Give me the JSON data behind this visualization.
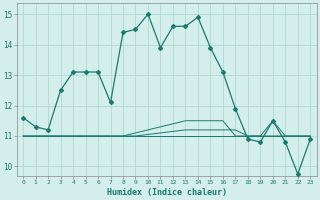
{
  "xlabel": "Humidex (Indice chaleur)",
  "ylabel": "",
  "background_color": "#d4eeec",
  "grid_color": "#aed8d5",
  "line_color": "#1a7a6e",
  "xlim": [
    -0.5,
    23.5
  ],
  "ylim": [
    9.7,
    15.35
  ],
  "yticks": [
    10,
    11,
    12,
    13,
    14,
    15
  ],
  "xticks": [
    0,
    1,
    2,
    3,
    4,
    5,
    6,
    7,
    8,
    9,
    10,
    11,
    12,
    13,
    14,
    15,
    16,
    17,
    18,
    19,
    20,
    21,
    22,
    23
  ],
  "series": [
    [
      11.6,
      11.3,
      11.2,
      12.5,
      13.1,
      13.1,
      13.1,
      12.1,
      14.4,
      14.5,
      15.0,
      13.9,
      14.6,
      14.6,
      14.9,
      13.9,
      13.1,
      11.9,
      10.9,
      10.8,
      11.5,
      10.8,
      9.75,
      10.9
    ],
    [
      11.0,
      11.0,
      11.0,
      11.0,
      11.0,
      11.0,
      11.0,
      11.0,
      11.0,
      11.0,
      11.05,
      11.1,
      11.15,
      11.2,
      11.2,
      11.2,
      11.2,
      11.2,
      11.0,
      11.0,
      11.0,
      11.0,
      11.0,
      11.0
    ],
    [
      11.0,
      11.0,
      11.0,
      11.0,
      11.0,
      11.0,
      11.0,
      11.0,
      11.0,
      11.1,
      11.2,
      11.3,
      11.4,
      11.5,
      11.5,
      11.5,
      11.5,
      11.0,
      11.0,
      11.0,
      11.5,
      11.0,
      11.0,
      11.0
    ],
    [
      11.0,
      11.0,
      11.0,
      11.0,
      11.0,
      11.0,
      11.0,
      11.0,
      11.0,
      11.0,
      11.0,
      11.0,
      11.0,
      11.0,
      11.0,
      11.0,
      11.0,
      11.0,
      11.0,
      11.0,
      11.0,
      11.0,
      11.0,
      11.0
    ]
  ]
}
